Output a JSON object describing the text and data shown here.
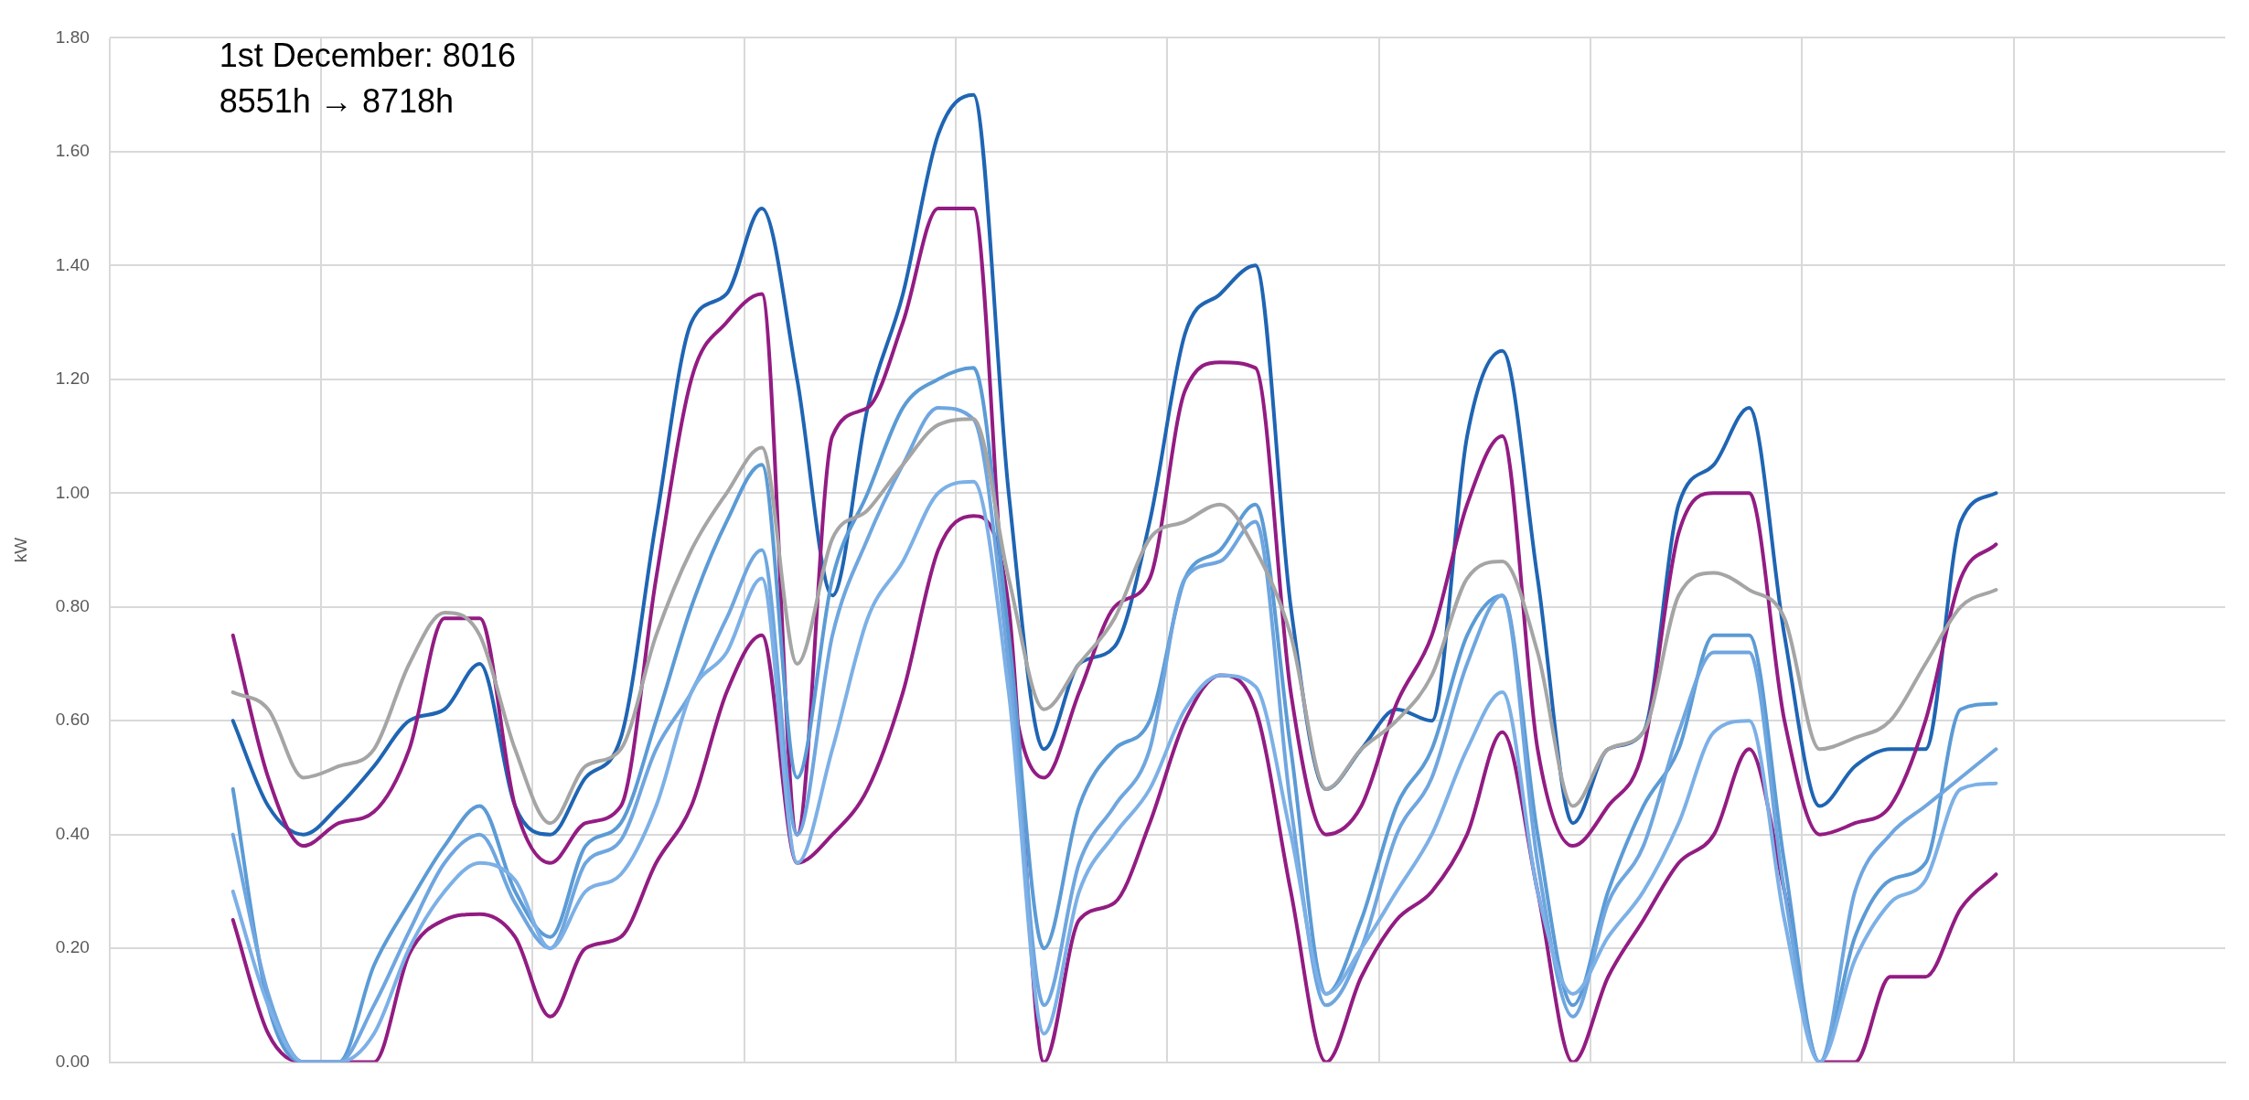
{
  "chart_data": {
    "type": "line",
    "ylabel": "kW",
    "annotations": [
      "1st December: 8016",
      "8551h → 8718h"
    ],
    "categories": [
      null,
      null,
      null,
      null,
      null,
      null,
      null,
      null,
      null,
      null,
      null,
      null,
      null,
      null,
      null,
      null,
      null,
      null,
      null,
      null,
      null,
      null,
      null,
      null,
      null,
      null,
      null,
      null,
      null,
      null,
      null,
      null,
      null,
      null,
      null,
      null,
      null,
      null,
      null,
      null,
      null,
      null,
      null,
      null,
      null,
      null,
      null,
      null,
      null,
      null,
      null,
      null,
      null,
      null,
      null,
      null,
      null,
      null,
      null,
      null
    ],
    "ylim": [
      0,
      1.8
    ],
    "yticks": [
      {
        "value": 0,
        "label": "0.00"
      },
      {
        "value": 0.2,
        "label": "0.20"
      },
      {
        "value": 0.4,
        "label": "0.40"
      },
      {
        "value": 0.6,
        "label": "0.60"
      },
      {
        "value": 0.8,
        "label": "0.80"
      },
      {
        "value": 1,
        "label": "1.00"
      },
      {
        "value": 1.2,
        "label": "1.20"
      },
      {
        "value": 1.4,
        "label": "1.40"
      },
      {
        "value": 1.6,
        "label": "1.60"
      },
      {
        "value": 1.8,
        "label": "1.80"
      }
    ],
    "grid": true,
    "legend": false,
    "marker": "none",
    "line_style": "solid",
    "tick_labels": "y",
    "series": [
      {
        "color": "#a5a5a5",
        "values": [
          null,
          null,
          null,
          0.65,
          0.62,
          0.5,
          0.52,
          0.55,
          0.7,
          0.79,
          0.75,
          0.55,
          0.42,
          0.52,
          0.55,
          0.75,
          0.9,
          1.0,
          1.08,
          0.7,
          0.92,
          0.97,
          1.05,
          1.12,
          1.13,
          0.85,
          0.62,
          0.7,
          0.78,
          0.92,
          0.95,
          0.98,
          0.9,
          0.75,
          0.48,
          0.55,
          0.6,
          0.68,
          0.85,
          0.88,
          0.72,
          0.45,
          0.55,
          0.58,
          0.82,
          0.86,
          0.83,
          0.78,
          0.55,
          0.57,
          0.6,
          0.7,
          0.8,
          0.83,
          null,
          null,
          null,
          null,
          null,
          null
        ]
      },
      {
        "color": "#7cb0e6",
        "values": [
          null,
          null,
          null,
          0.3,
          0.1,
          0.0,
          0.0,
          0.05,
          0.2,
          0.3,
          0.35,
          0.32,
          0.2,
          0.3,
          0.33,
          0.45,
          0.65,
          0.72,
          0.85,
          0.35,
          0.55,
          0.78,
          0.88,
          1.0,
          1.02,
          0.65,
          0.05,
          0.3,
          0.4,
          0.48,
          0.62,
          0.68,
          0.66,
          0.4,
          0.12,
          0.2,
          0.3,
          0.4,
          0.55,
          0.65,
          0.3,
          0.12,
          0.22,
          0.3,
          0.42,
          0.58,
          0.6,
          0.25,
          0.0,
          0.18,
          0.28,
          0.32,
          0.48,
          0.49,
          null,
          null,
          null,
          null,
          null,
          null
        ]
      },
      {
        "color": "#6fa6df",
        "values": [
          null,
          null,
          null,
          0.4,
          0.12,
          0.0,
          0.0,
          0.1,
          0.23,
          0.35,
          0.4,
          0.28,
          0.2,
          0.35,
          0.39,
          0.55,
          0.65,
          0.78,
          0.9,
          0.4,
          0.75,
          0.92,
          1.05,
          1.15,
          1.13,
          0.7,
          0.1,
          0.35,
          0.45,
          0.55,
          0.85,
          0.88,
          0.95,
          0.45,
          0.1,
          0.2,
          0.4,
          0.5,
          0.7,
          0.82,
          0.35,
          0.08,
          0.28,
          0.38,
          0.58,
          0.72,
          0.72,
          0.3,
          0.0,
          0.3,
          0.4,
          0.45,
          0.5,
          0.55,
          null,
          null,
          null,
          null,
          null,
          null
        ]
      },
      {
        "color": "#5b9bd5",
        "values": [
          null,
          null,
          null,
          0.48,
          0.1,
          0.0,
          0.0,
          0.17,
          0.28,
          0.38,
          0.45,
          0.3,
          0.22,
          0.38,
          0.42,
          0.6,
          0.8,
          0.95,
          1.05,
          0.5,
          0.85,
          1.0,
          1.15,
          1.2,
          1.22,
          0.75,
          0.2,
          0.45,
          0.55,
          0.6,
          0.85,
          0.9,
          0.98,
          0.55,
          0.12,
          0.25,
          0.45,
          0.55,
          0.75,
          0.82,
          0.4,
          0.1,
          0.3,
          0.45,
          0.55,
          0.75,
          0.75,
          0.35,
          0.0,
          0.22,
          0.32,
          0.35,
          0.62,
          0.63,
          null,
          null,
          null,
          null,
          null,
          null
        ]
      },
      {
        "color": "#921c82",
        "values": [
          null,
          null,
          null,
          0.25,
          0.05,
          0.0,
          0.0,
          0.0,
          0.19,
          0.25,
          0.26,
          0.22,
          0.08,
          0.2,
          0.22,
          0.35,
          0.45,
          0.65,
          0.75,
          0.35,
          0.4,
          0.48,
          0.65,
          0.9,
          0.96,
          0.8,
          0.0,
          0.25,
          0.28,
          0.42,
          0.6,
          0.68,
          0.62,
          0.3,
          0.0,
          0.15,
          0.25,
          0.3,
          0.4,
          0.58,
          0.3,
          0.0,
          0.15,
          0.25,
          0.35,
          0.4,
          0.55,
          0.3,
          0.0,
          0.0,
          0.15,
          0.15,
          0.27,
          0.33,
          null,
          null,
          null,
          null,
          null,
          null
        ]
      },
      {
        "color": "#931c83",
        "values": [
          null,
          null,
          null,
          0.75,
          0.5,
          0.38,
          0.42,
          0.44,
          0.55,
          0.78,
          0.78,
          0.45,
          0.35,
          0.42,
          0.45,
          0.85,
          1.2,
          1.3,
          1.35,
          0.4,
          1.1,
          1.15,
          1.3,
          1.5,
          1.5,
          0.7,
          0.5,
          0.65,
          0.8,
          0.85,
          1.18,
          1.23,
          1.22,
          0.65,
          0.4,
          0.45,
          0.63,
          0.75,
          0.98,
          1.1,
          0.55,
          0.38,
          0.45,
          0.55,
          0.93,
          1.0,
          1.0,
          0.6,
          0.4,
          0.42,
          0.45,
          0.6,
          0.85,
          0.91,
          null,
          null,
          null,
          null,
          null,
          null
        ]
      },
      {
        "color": "#1f65b3",
        "values": [
          null,
          null,
          null,
          0.6,
          0.45,
          0.4,
          0.45,
          0.52,
          0.6,
          0.62,
          0.7,
          0.45,
          0.4,
          0.5,
          0.57,
          0.95,
          1.3,
          1.35,
          1.5,
          1.2,
          0.82,
          1.15,
          1.35,
          1.63,
          1.7,
          1.0,
          0.55,
          0.7,
          0.73,
          0.95,
          1.28,
          1.35,
          1.4,
          0.8,
          0.48,
          0.55,
          0.62,
          0.6,
          1.1,
          1.25,
          0.85,
          0.42,
          0.55,
          0.58,
          0.98,
          1.05,
          1.15,
          0.75,
          0.45,
          0.52,
          0.55,
          0.55,
          0.95,
          1.0,
          null,
          null,
          null,
          null,
          null,
          null
        ]
      }
    ]
  }
}
